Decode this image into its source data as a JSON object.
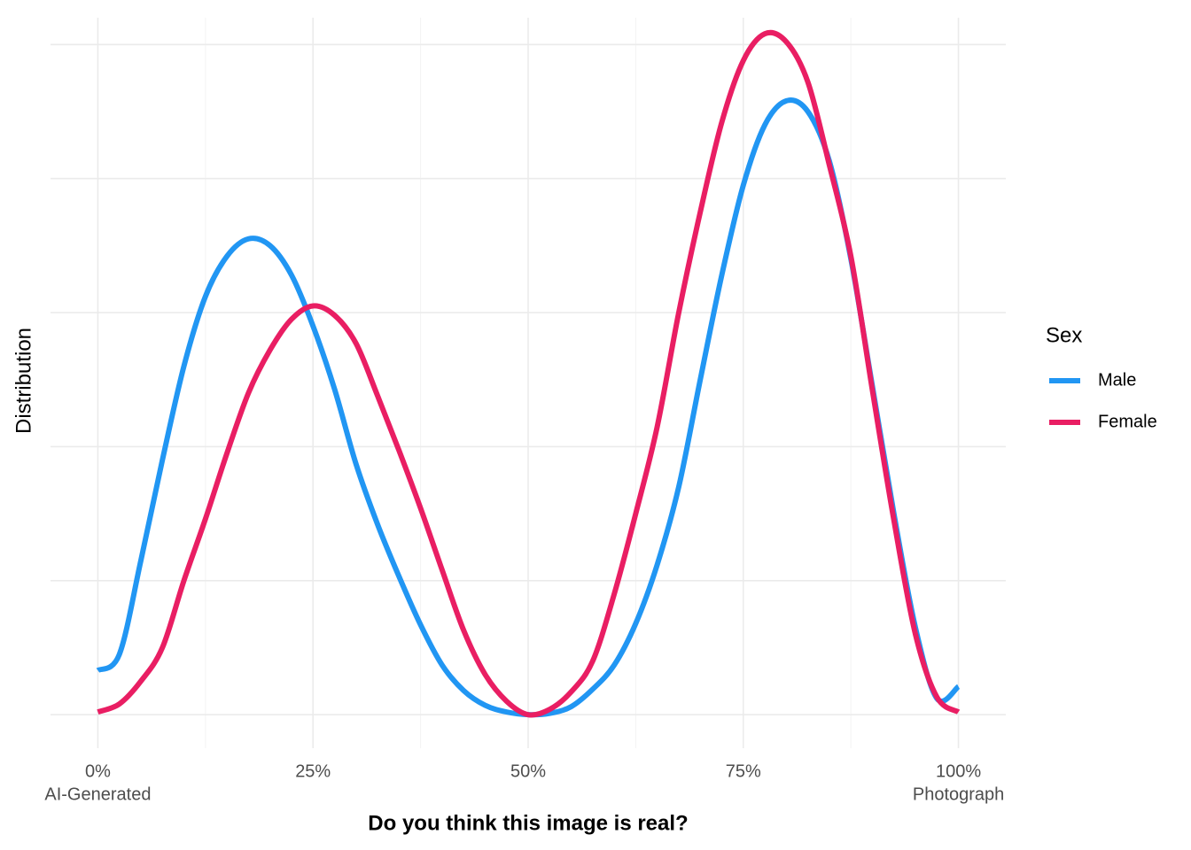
{
  "chart_data": {
    "type": "line",
    "x_label": "Do you think this image is real?",
    "y_label": "Distribution",
    "legend_title": "Sex",
    "legend_position": "right",
    "grid": true,
    "xlim": [
      -0.055,
      1.055
    ],
    "xticks": [
      {
        "value": 0,
        "label": "0%"
      },
      {
        "value": 0.25,
        "label": "25%"
      },
      {
        "value": 0.5,
        "label": "50%"
      },
      {
        "value": 0.75,
        "label": "75%"
      },
      {
        "value": 1,
        "label": "100%"
      }
    ],
    "x_minor_ticks": [
      0.125,
      0.375,
      0.625,
      0.875
    ],
    "x_end_labels": [
      "AI-Generated",
      "Photograph"
    ],
    "ylim": [
      -0.25,
      5.2
    ],
    "yticks": [
      0,
      1,
      2,
      3,
      4,
      5
    ],
    "show_ytick_labels": false,
    "x": [
      0,
      0.025,
      0.05,
      0.075,
      0.1,
      0.125,
      0.15,
      0.175,
      0.2,
      0.225,
      0.25,
      0.275,
      0.3,
      0.325,
      0.35,
      0.375,
      0.4,
      0.425,
      0.45,
      0.475,
      0.5,
      0.525,
      0.55,
      0.575,
      0.6,
      0.625,
      0.65,
      0.675,
      0.7,
      0.725,
      0.75,
      0.775,
      0.8,
      0.825,
      0.85,
      0.875,
      0.9,
      0.925,
      0.95,
      0.975,
      1
    ],
    "series": [
      {
        "name": "Male",
        "color": "#2196F3",
        "values": [
          0.33,
          0.45,
          1.15,
          1.9,
          2.6,
          3.12,
          3.42,
          3.55,
          3.5,
          3.28,
          2.9,
          2.43,
          1.87,
          1.42,
          1.03,
          0.67,
          0.37,
          0.18,
          0.07,
          0.02,
          0,
          0.01,
          0.06,
          0.19,
          0.37,
          0.68,
          1.12,
          1.7,
          2.5,
          3.28,
          3.95,
          4.4,
          4.58,
          4.5,
          4.13,
          3.4,
          2.45,
          1.5,
          0.65,
          0.12,
          0.21
        ]
      },
      {
        "name": "Female",
        "color": "#E91E63",
        "values": [
          0.02,
          0.08,
          0.25,
          0.5,
          1.0,
          1.46,
          1.95,
          2.4,
          2.72,
          2.95,
          3.05,
          2.98,
          2.77,
          2.38,
          1.97,
          1.54,
          1.08,
          0.63,
          0.3,
          0.1,
          0,
          0.04,
          0.17,
          0.4,
          0.9,
          1.5,
          2.15,
          3.0,
          3.75,
          4.42,
          4.88,
          5.08,
          5.02,
          4.72,
          4.1,
          3.42,
          2.42,
          1.45,
          0.6,
          0.13,
          0.02
        ]
      }
    ]
  }
}
